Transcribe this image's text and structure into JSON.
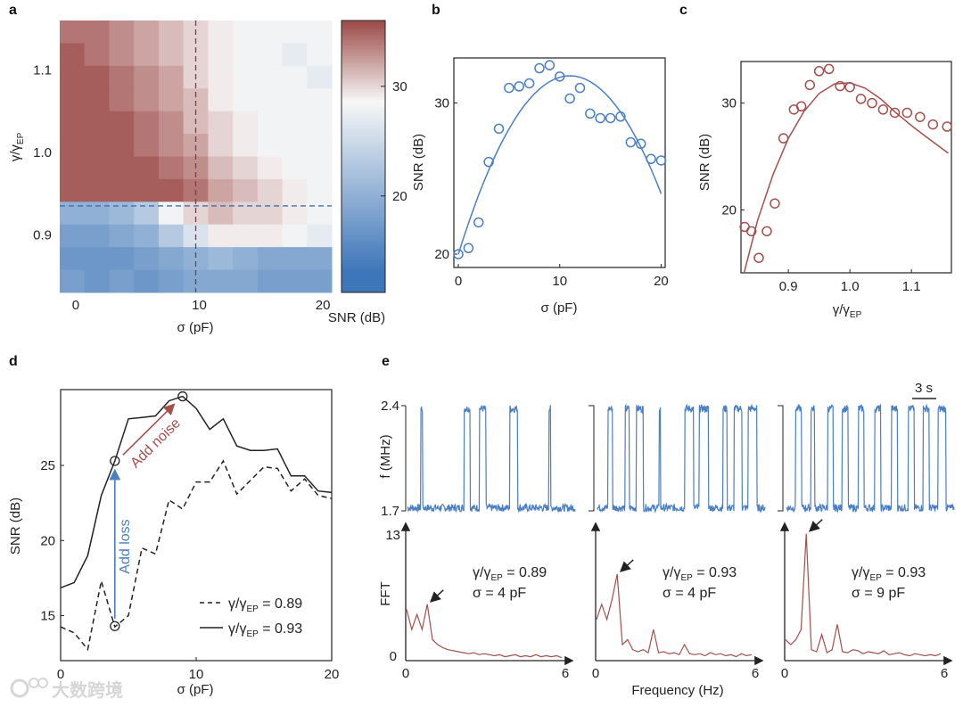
{
  "panels": {
    "a": "a",
    "b": "b",
    "c": "c",
    "d": "d",
    "e": "e"
  },
  "colors": {
    "blue": "#4a7fc1",
    "red": "#a3504c",
    "heat_low": "#3d76b9",
    "heat_mid": "#f7f7f7",
    "heat_high": "#9a4744",
    "black": "#222222"
  },
  "watermark": {
    "text": "大数跨境",
    "logo": "logo-icon"
  },
  "chart_data": [
    {
      "id": "a",
      "type": "heatmap",
      "xlabel": "σ (pF)",
      "ylabel_main": "γ/γ",
      "ylabel_sub": "EP",
      "colorbar_label": "SNR (dB)",
      "colorbar_ticks": [
        "20",
        "30"
      ],
      "colorbar_tick_values": [
        20,
        30
      ],
      "color_range": [
        11.2,
        36
      ],
      "x_ticks": [
        "0",
        "10",
        "20"
      ],
      "x_tick_values": [
        0,
        10,
        20
      ],
      "xlim": [
        -1,
        21
      ],
      "y_ticks": [
        "1.1",
        "1.0",
        "0.9"
      ],
      "y_tick_values": [
        1.1,
        1.0,
        0.9
      ],
      "ylim": [
        0.83,
        1.16
      ],
      "x_centers": [
        0,
        2,
        4,
        6,
        8,
        10,
        12,
        14,
        16,
        18,
        20
      ],
      "y_centers_top_to_bottom": [
        1.146,
        1.119,
        1.091,
        1.064,
        1.036,
        1.009,
        0.981,
        0.954,
        0.926,
        0.899,
        0.871,
        0.844
      ],
      "values": [
        [
          34,
          34,
          33,
          32,
          31,
          30,
          29,
          28,
          28,
          28,
          28
        ],
        [
          35,
          34,
          33,
          32,
          31,
          30,
          29,
          28,
          28,
          27,
          28
        ],
        [
          35,
          35,
          34,
          33,
          32,
          30,
          29,
          28,
          28,
          28,
          27
        ],
        [
          35,
          35,
          34,
          33,
          32,
          31,
          29,
          28,
          28,
          28,
          28
        ],
        [
          35,
          35,
          35,
          34,
          33,
          31,
          30,
          29,
          28,
          28,
          28
        ],
        [
          35,
          35,
          35,
          34,
          33,
          32,
          30,
          29,
          28,
          28,
          28
        ],
        [
          35,
          35,
          35,
          35,
          34,
          33,
          31,
          30,
          29,
          28,
          28
        ],
        [
          35,
          35,
          35,
          35,
          35,
          34,
          32,
          31,
          30,
          29,
          28
        ],
        [
          20,
          20,
          21,
          23,
          28,
          30,
          31,
          30,
          30,
          29,
          28
        ],
        [
          18,
          18,
          19,
          20,
          23,
          26,
          29,
          29,
          29,
          28,
          27
        ],
        [
          17,
          17,
          17,
          18,
          19,
          20,
          21,
          20,
          19,
          19,
          19
        ],
        [
          18,
          17,
          18,
          17,
          18,
          19,
          19,
          19,
          18,
          18,
          18
        ]
      ],
      "guide_sigma": 10,
      "guide_gamma": 0.935
    },
    {
      "id": "b",
      "type": "scatter",
      "xlabel": "σ (pF)",
      "ylabel": "SNR (dB)",
      "x_ticks": [
        "0",
        "10",
        "20"
      ],
      "x_tick_values": [
        0,
        10,
        20
      ],
      "xlim": [
        -0.44,
        20.4
      ],
      "y_ticks": [
        "20",
        "30"
      ],
      "y_tick_values": [
        20,
        30
      ],
      "ylim": [
        19.12,
        32.98
      ],
      "x": [
        0,
        1,
        2,
        3,
        4,
        5,
        6,
        7,
        8,
        9,
        10,
        11,
        12,
        13,
        14,
        15,
        16,
        17,
        18,
        19,
        20
      ],
      "y": [
        20.0,
        20.4,
        22.1,
        26.1,
        28.3,
        31.0,
        31.1,
        31.3,
        32.3,
        32.5,
        31.75,
        30.3,
        31.0,
        29.3,
        29.0,
        29.0,
        29.1,
        27.4,
        27.3,
        26.3,
        26.2
      ],
      "fit": {
        "type": "quadratic",
        "peak_x": 11,
        "peak_y": 31.8,
        "x_range": [
          0,
          20
        ],
        "y_at_start": 20.0,
        "y_at_end": 24.0
      }
    },
    {
      "id": "c",
      "type": "scatter",
      "xlabel_main": "γ/γ",
      "xlabel_sub": "EP",
      "ylabel": "SNR (dB)",
      "x_ticks": [
        "0.9",
        "1.0",
        "1.1"
      ],
      "x_tick_values": [
        0.9,
        1.0,
        1.1
      ],
      "xlim": [
        0.823,
        1.165
      ],
      "y_ticks": [
        "20",
        "30"
      ],
      "y_tick_values": [
        20,
        30
      ],
      "ylim": [
        14.1,
        33.9
      ],
      "x": [
        0.829,
        0.84,
        0.852,
        0.865,
        0.878,
        0.892,
        0.909,
        0.921,
        0.935,
        0.95,
        0.966,
        0.984,
        1.0,
        1.018,
        1.036,
        1.054,
        1.073,
        1.093,
        1.114,
        1.135,
        1.158
      ],
      "y": [
        18.4,
        18.0,
        15.5,
        18.0,
        20.6,
        26.7,
        29.4,
        29.7,
        31.7,
        33.0,
        33.2,
        31.6,
        31.5,
        30.4,
        30.0,
        29.4,
        29.1,
        29.1,
        28.7,
        28.0,
        27.8
      ],
      "fit": {
        "x": [
          0.828,
          0.85,
          0.875,
          0.9,
          0.925,
          0.95,
          0.975,
          1.0,
          1.025,
          1.05,
          1.075,
          1.1,
          1.125,
          1.16
        ],
        "y": [
          14.1,
          19.0,
          23.3,
          26.7,
          29.2,
          30.9,
          31.8,
          31.9,
          31.4,
          30.4,
          29.1,
          27.9,
          26.8,
          25.3
        ]
      }
    },
    {
      "id": "d",
      "type": "line",
      "xlabel": "σ (pF)",
      "ylabel": "SNR (dB)",
      "x_ticks": [
        "0",
        "10",
        "20"
      ],
      "x_tick_values": [
        0,
        10,
        20
      ],
      "xlim": [
        0,
        20
      ],
      "y_ticks": [
        "15",
        "20",
        "25"
      ],
      "y_tick_values": [
        15,
        20,
        25
      ],
      "ylim": [
        12,
        30.05
      ],
      "x": [
        0,
        1,
        2,
        3,
        4,
        5,
        6,
        7,
        8,
        9,
        10,
        11,
        12,
        13,
        14,
        15,
        16,
        17,
        18,
        19,
        20
      ],
      "series": [
        {
          "name_main": "γ/γ",
          "name_sub": "EP",
          "name_value": " = 0.89",
          "style": "dashed",
          "values": [
            14.25,
            13.85,
            12.75,
            17.3,
            14.25,
            15.0,
            19.5,
            19.1,
            22.7,
            22.1,
            23.9,
            23.9,
            25.3,
            23.1,
            24.0,
            24.9,
            24.8,
            23.3,
            24.1,
            23.0,
            22.8
          ]
        },
        {
          "name_main": "γ/γ",
          "name_sub": "EP",
          "name_value": " = 0.93",
          "style": "solid",
          "values": [
            16.85,
            17.2,
            19.0,
            23.0,
            25.3,
            28.1,
            28.2,
            28.3,
            29.3,
            29.6,
            28.8,
            27.4,
            28.1,
            26.3,
            26.0,
            26.0,
            26.1,
            24.3,
            24.3,
            23.3,
            23.2
          ]
        }
      ],
      "markers": [
        {
          "x": 4,
          "y": 25.3
        },
        {
          "x": 9,
          "y": 29.6
        },
        {
          "x": 4,
          "y": 14.3
        }
      ],
      "annotations": [
        {
          "text": "Add loss",
          "color": "blue",
          "from": [
            4,
            14.8
          ],
          "to": [
            4,
            24.6
          ]
        },
        {
          "text": "Add noise",
          "color": "red",
          "from": [
            4.6,
            25.7
          ],
          "to": [
            8.3,
            29.0
          ]
        }
      ],
      "legend": "bottom-right"
    },
    {
      "id": "e",
      "type": "line",
      "ts_ylabel": "f (MHz)",
      "ts_y_ticks": [
        "2.4",
        "1.7"
      ],
      "ts_ylim": [
        1.7,
        2.4
      ],
      "scale_bar": "3 s",
      "duration_s": 18,
      "fft_ylabel": "FFT",
      "fft_y_ticks": [
        "13",
        "0"
      ],
      "fft_ylim": [
        0,
        13
      ],
      "fft_x_ticks": [
        "0",
        "6"
      ],
      "fft_xlim": [
        0,
        6
      ],
      "xlabel": "Frequency (Hz)",
      "fft_freqs_step": 0.2,
      "subpanels": [
        {
          "gamma_main": "γ/γ",
          "gamma_sub": "EP",
          "gamma_value": " = 0.89",
          "sigma": "σ = 4 pF",
          "high_intervals": [
            [
              1.45,
              1.6
            ],
            [
              6.1,
              6.7
            ],
            [
              7.7,
              8.4
            ],
            [
              11.0,
              11.8
            ],
            [
              15.2,
              15.35
            ]
          ],
          "fft": [
            5,
            3,
            4.5,
            3,
            5.5,
            2,
            1.5,
            1.2,
            1,
            0.9,
            0.8,
            0.7,
            0.6,
            0.7,
            0.5,
            0.6,
            0.5,
            0.4,
            0.5,
            0.3,
            0.4,
            0.5,
            0.3,
            0.4,
            0.3,
            0.5,
            0.3,
            0.4,
            0.3,
            0.4,
            0.2
          ],
          "peak_index": 4
        },
        {
          "gamma_main": "γ/γ",
          "gamma_sub": "EP",
          "gamma_value": " = 0.93",
          "sigma": "σ = 4 pF",
          "high_intervals": [
            [
              1.1,
              1.6
            ],
            [
              3.0,
              3.4
            ],
            [
              4.2,
              4.9
            ],
            [
              6.65,
              6.75
            ],
            [
              9.4,
              10.3
            ],
            [
              10.9,
              11.9
            ],
            [
              13.5,
              13.9
            ],
            [
              14.7,
              15.5
            ],
            [
              16.2,
              17.1
            ]
          ],
          "fft": [
            4,
            5.5,
            4,
            6,
            8.5,
            1.5,
            2,
            1,
            0.8,
            1,
            0.7,
            3,
            0.7,
            0.8,
            0.6,
            0.7,
            0.5,
            1.5,
            0.6,
            0.5,
            0.6,
            0.4,
            0.7,
            0.5,
            0.6,
            0.4,
            0.5,
            0.3,
            0.6,
            0.4,
            0.5
          ],
          "peak_index": 4
        },
        {
          "gamma_main": "γ/γ",
          "gamma_sub": "EP",
          "gamma_value": " = 0.93",
          "sigma": "σ = 9 pF",
          "high_intervals": [
            [
              1.0,
              1.6
            ],
            [
              2.6,
              3.0
            ],
            [
              4.4,
              5.0
            ],
            [
              6.0,
              6.6
            ],
            [
              7.7,
              8.3
            ],
            [
              9.5,
              10.1
            ],
            [
              11.3,
              11.9
            ],
            [
              13.1,
              13.7
            ],
            [
              14.7,
              15.3
            ],
            [
              16.3,
              17.1
            ]
          ],
          "fft": [
            2,
            1.5,
            2,
            3,
            12.5,
            1,
            0.8,
            2.5,
            0.7,
            1,
            3.5,
            0.8,
            0.7,
            1,
            0.9,
            0.6,
            0.8,
            0.7,
            0.6,
            0.9,
            0.5,
            0.6,
            0.7,
            0.5,
            0.4,
            0.6,
            0.5,
            0.4,
            0.5,
            0.4,
            0.6
          ],
          "peak_index": 4
        }
      ]
    }
  ]
}
